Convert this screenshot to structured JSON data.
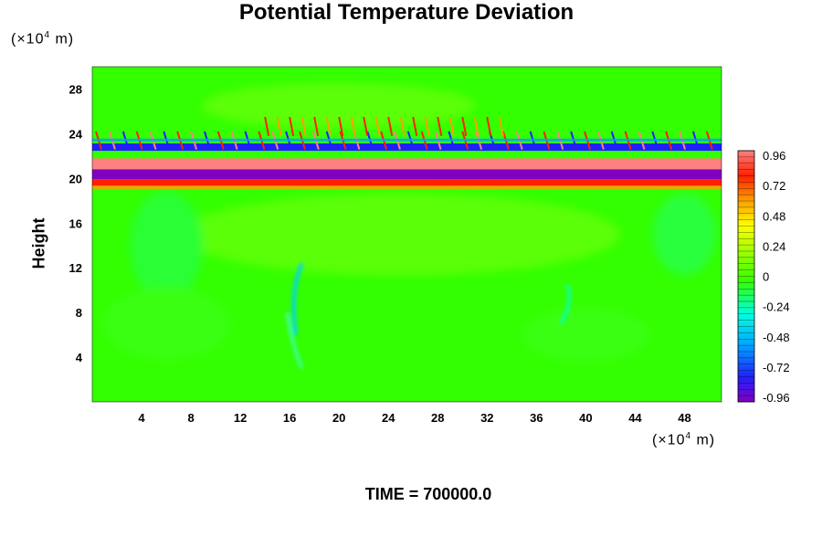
{
  "title": "Potential Temperature Deviation",
  "y_unit_prefix": "(×10",
  "y_unit_exp": "4",
  "y_unit_suffix": " m)",
  "x_unit_prefix": "(×10",
  "x_unit_exp": "4",
  "x_unit_suffix": " m)",
  "ylabel": "Height",
  "time_label": "TIME = 700000.0",
  "colors": {
    "background_field": "#33ff00",
    "colormap": [
      "#8000c0",
      "#2020ff",
      "#00a0ff",
      "#00ffe0",
      "#33ff00",
      "#a0ff00",
      "#ffff00",
      "#ffa000",
      "#ff2000",
      "#ff8080"
    ]
  },
  "chart_data": {
    "type": "heatmap",
    "title": "Potential Temperature Deviation",
    "xlabel": "",
    "ylabel": "Height",
    "x_ticks": [
      4,
      8,
      12,
      16,
      20,
      24,
      28,
      32,
      36,
      40,
      44,
      48
    ],
    "y_ticks": [
      4,
      8,
      12,
      16,
      20,
      24,
      28
    ],
    "xlim": [
      0,
      51
    ],
    "ylim": [
      0,
      30
    ],
    "colorbar": {
      "ticks": [
        "0.96",
        "0.72",
        "0.48",
        "0.24",
        "0",
        "-0.24",
        "-0.48",
        "-0.72",
        "-0.96"
      ],
      "range": [
        -1.0,
        1.0
      ]
    },
    "bands": [
      {
        "y_center": 20.5,
        "value": -0.96
      },
      {
        "y_center": 21.3,
        "value": 0.96
      },
      {
        "y_center": 22.8,
        "value": -0.72
      },
      {
        "y_center": 19.6,
        "value": 0.72
      }
    ]
  }
}
